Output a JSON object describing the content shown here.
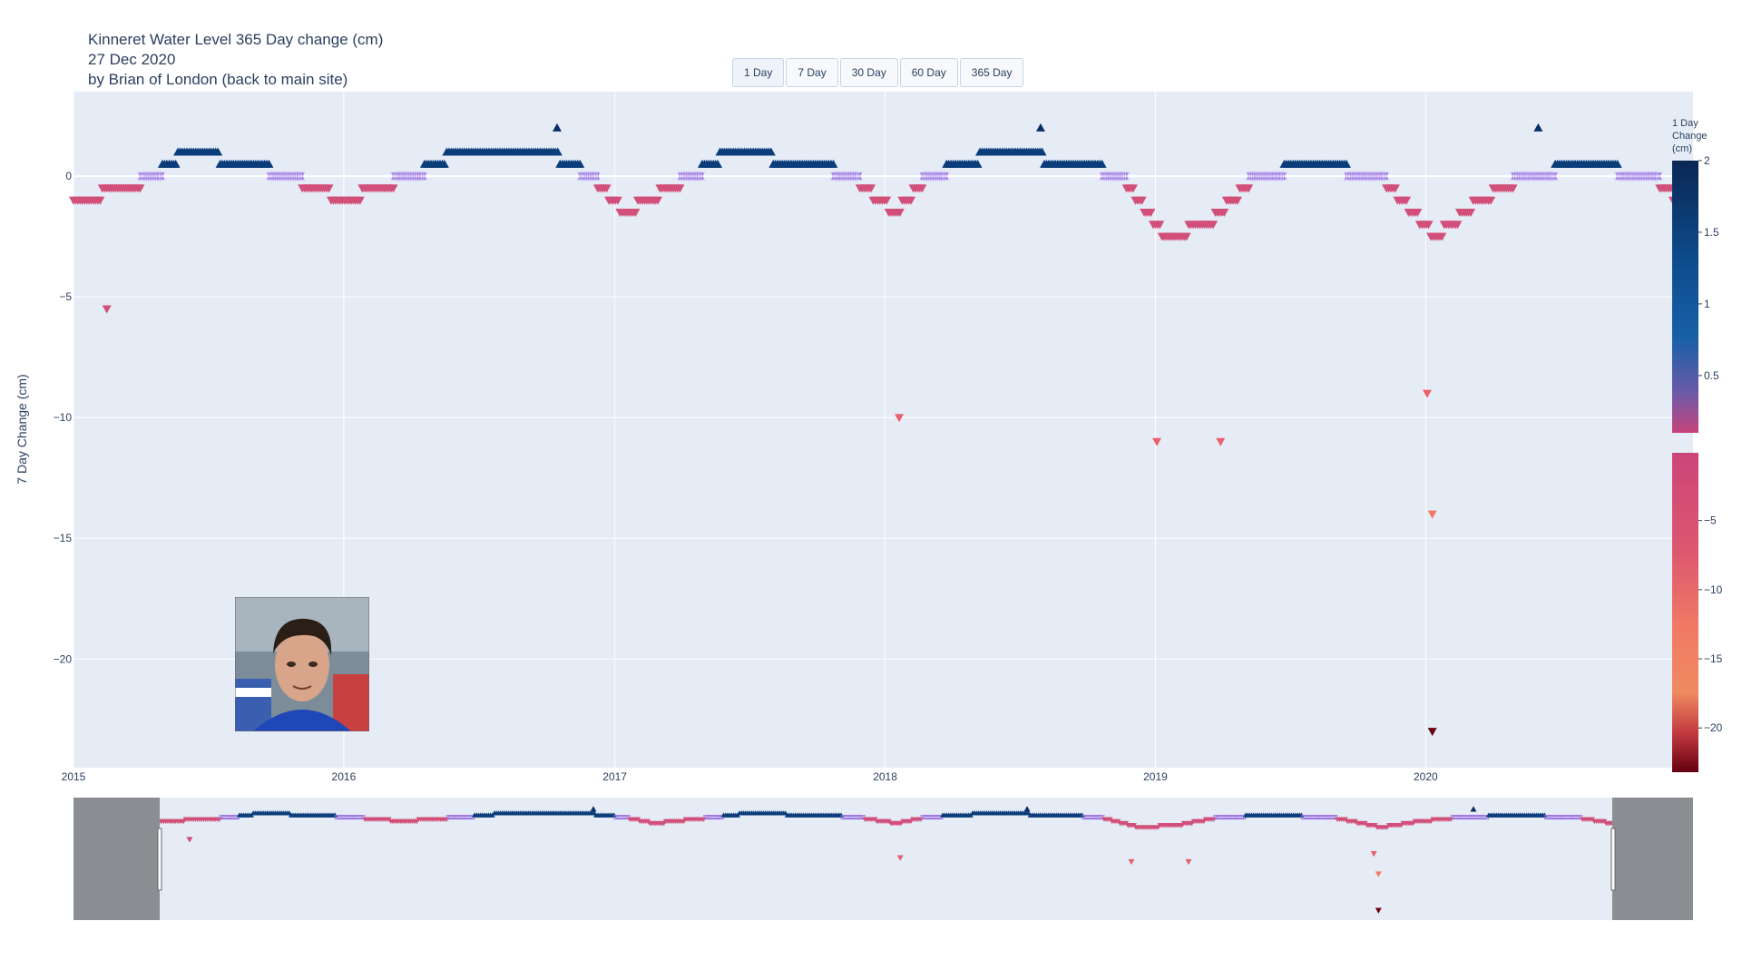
{
  "header": {
    "title": "Kinneret Water Level 365 Day change (cm)",
    "date": "27 Dec 2020",
    "byline": "by Brian of London (back to main site)"
  },
  "buttons": [
    "1 Day",
    "7 Day",
    "30 Day",
    "60 Day",
    "365 Day"
  ],
  "colors": {
    "plot_bg": "#e5ecf6",
    "rise": "#0b3d7a",
    "flat": "#9a6de0",
    "fall": "#d24f7a",
    "deep_fall": "#6b0010",
    "range_mask": "#8a8d91"
  },
  "icons": {
    "up_marker": "triangle-up",
    "flat_marker": "star-of-david",
    "down_marker": "triangle-down"
  },
  "chart_data": {
    "type": "scatter",
    "title": "Kinneret Water Level 365 Day change (cm)",
    "ylabel": "7 Day Change (cm)",
    "xlabel": "",
    "x_range": [
      "2015-01-01",
      "2020-12-27"
    ],
    "ylim": [
      -24.5,
      3.5
    ],
    "x_ticks": [
      "2015",
      "2016",
      "2017",
      "2018",
      "2019",
      "2020"
    ],
    "y_ticks": [
      0,
      -5,
      -10,
      -15,
      -20
    ],
    "grid": true,
    "colorbar": {
      "title": "1 Day Change (cm)",
      "ticks_positive": [
        2,
        1.5,
        1,
        0.5
      ],
      "ticks_negative": [
        -5,
        -10,
        -15,
        -20
      ]
    },
    "notable_points": [
      {
        "x": "2015-02-15",
        "y": -5.5
      },
      {
        "x": "2018-01-20",
        "y": -10
      },
      {
        "x": "2019-01-03",
        "y": -11
      },
      {
        "x": "2019-03-30",
        "y": -11
      },
      {
        "x": "2020-01-03",
        "y": -9
      },
      {
        "x": "2020-01-10",
        "y": -14
      },
      {
        "x": "2020-01-10",
        "y": -23
      },
      {
        "x": "2016-10-15",
        "y": 2
      },
      {
        "x": "2018-07-30",
        "y": 2
      },
      {
        "x": "2020-06-01",
        "y": 2
      }
    ],
    "seasonal_profile": [
      {
        "x": "2015-01-01",
        "y": -1
      },
      {
        "x": "2015-03-15",
        "y": -0.5
      },
      {
        "x": "2015-04-20",
        "y": 0
      },
      {
        "x": "2015-06-01",
        "y": 1
      },
      {
        "x": "2015-09-01",
        "y": 0.5
      },
      {
        "x": "2015-10-15",
        "y": 0
      },
      {
        "x": "2016-01-01",
        "y": -1
      },
      {
        "x": "2016-04-01",
        "y": 0
      },
      {
        "x": "2016-06-01",
        "y": 1
      },
      {
        "x": "2016-10-01",
        "y": 1
      },
      {
        "x": "2016-12-01",
        "y": 0
      },
      {
        "x": "2017-01-15",
        "y": -1.5
      },
      {
        "x": "2017-04-15",
        "y": 0
      },
      {
        "x": "2017-06-01",
        "y": 1
      },
      {
        "x": "2017-10-01",
        "y": 0.5
      },
      {
        "x": "2017-11-15",
        "y": 0
      },
      {
        "x": "2018-01-15",
        "y": -1.5
      },
      {
        "x": "2018-03-01",
        "y": 0
      },
      {
        "x": "2018-06-01",
        "y": 1
      },
      {
        "x": "2018-10-01",
        "y": 0.5
      },
      {
        "x": "2018-11-15",
        "y": 0
      },
      {
        "x": "2019-01-15",
        "y": -2.5
      },
      {
        "x": "2019-03-15",
        "y": -2
      },
      {
        "x": "2019-05-15",
        "y": 0
      },
      {
        "x": "2019-08-01",
        "y": 0.5
      },
      {
        "x": "2019-11-01",
        "y": 0
      },
      {
        "x": "2020-01-15",
        "y": -2.5
      },
      {
        "x": "2020-03-15",
        "y": -1
      },
      {
        "x": "2020-05-15",
        "y": 0
      },
      {
        "x": "2020-08-01",
        "y": 0.5
      },
      {
        "x": "2020-11-01",
        "y": 0
      },
      {
        "x": "2020-12-27",
        "y": -1.5
      }
    ]
  }
}
